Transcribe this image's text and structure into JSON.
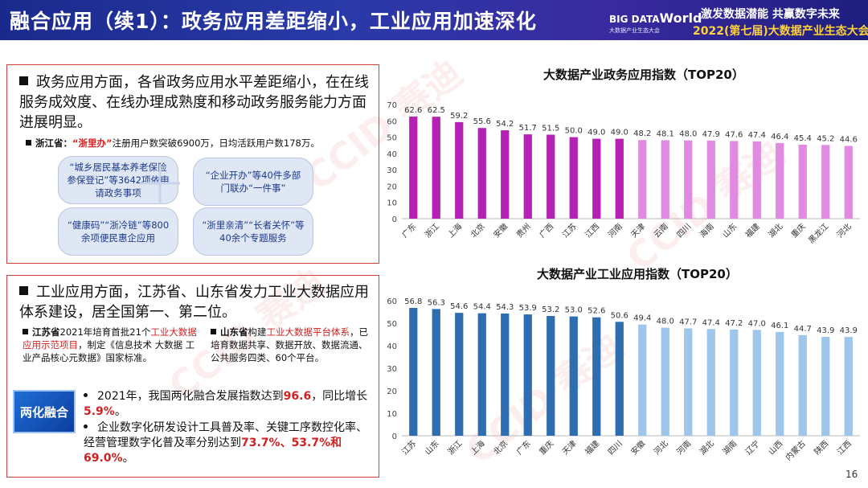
{
  "header": {
    "title": "融合应用（续1）：政务应用差距缩小，工业应用加速深化",
    "logo_line1_a": "BIG DATA",
    "logo_line1_b": "World",
    "logo_line2": "大数据产业生态大会",
    "slogan": "激发数据潜能  共赢数字未来",
    "conference": "2022(第七届)大数据产业生态大会"
  },
  "gov_section": {
    "main_text": "政务应用方面，各省政务应用水平差距缩小，在在线服务成效度、在线办理成熟度和移动政务服务能力方面进展明显。",
    "zj_label": "浙江省：",
    "zj_app": "“浙里办”",
    "zj_text": "注册用户数突破6900万，日均活跃用户数178万。",
    "pills": [
      "“城乡居民基本养老保险参保登记”等3642项依申请政务事项",
      "“企业开办”等40件多部门联办“一件事”",
      "“健康码”“浙冷链”等800余项便民惠企应用",
      "“浙里亲清”“长者关怀”等40余个专题服务"
    ]
  },
  "ind_section": {
    "main_text": "工业应用方面，江苏省、山东省发力工业大数据应用体系建设，居全国第一、第二位。",
    "js_label": "江苏省",
    "js_text_a": "2021年培育首批21个",
    "js_red": "工业大数据应用示范项目",
    "js_text_b": "，制定《信息技术 大数据 工业产品核心元数据》国家标准。",
    "sd_label": "山东省",
    "sd_text_a": "构建",
    "sd_red": "工业大数据平台体系",
    "sd_text_b": "，已培育数据共享、数据开放、数据流通、公共服务四类、60个平台。",
    "badge": "两化融合",
    "b1_a": "2021年，我国两化融合发展指数达到",
    "b1_red1": "96.6",
    "b1_b": "，同比增长",
    "b1_red2": "5.9%",
    "b1_c": "。",
    "b2_a": "企业数字化研发设计工具普及率、关键工序数控化率、经营管理数字化普及率分别达到",
    "b2_red": "73.7%、53.7%和69.0%",
    "b2_c": "。"
  },
  "page_number": "16",
  "watermark": "CCID 赛迪",
  "chart_data": [
    {
      "type": "bar",
      "title": "大数据产业政务应用指数（TOP20）",
      "categories": [
        "广东",
        "浙江",
        "上海",
        "北京",
        "安徽",
        "贵州",
        "广西",
        "江苏",
        "江西",
        "河南",
        "天津",
        "云南",
        "四川",
        "海南",
        "山东",
        "福建",
        "湖北",
        "重庆",
        "黑龙江",
        "河北"
      ],
      "values": [
        62.6,
        62.5,
        59.2,
        55.6,
        54.2,
        51.7,
        51.5,
        50.0,
        49.0,
        49.0,
        48.2,
        48.1,
        48.0,
        47.9,
        47.6,
        47.4,
        46.4,
        45.4,
        45.2,
        44.6
      ],
      "value_labels": [
        "62.6",
        "62.5",
        "59.2",
        "55.6",
        "54.2",
        "51.7",
        "51.5",
        "50.0",
        "49.0",
        "49.0",
        "48.2",
        "48.1",
        "48.0",
        "47.9",
        "47.6",
        "47.4",
        "46.4",
        "45.4",
        "45.2",
        "44.6"
      ],
      "yticks": [
        "0",
        "10",
        "20",
        "30",
        "40",
        "50",
        "60",
        "70"
      ],
      "ylim": [
        0,
        70
      ],
      "colors": {
        "dark": "#b520b5",
        "light": "#e08ae0"
      },
      "highlight_count": 10
    },
    {
      "type": "bar",
      "title": "大数据产业工业应用指数（TOP20）",
      "categories": [
        "江苏",
        "山东",
        "浙江",
        "上海",
        "北京",
        "广东",
        "重庆",
        "天津",
        "福建",
        "四川",
        "安徽",
        "河北",
        "河南",
        "湖北",
        "湖南",
        "辽宁",
        "山西",
        "内蒙古",
        "陕西",
        "江西"
      ],
      "values": [
        56.8,
        56.3,
        54.6,
        54.4,
        54.3,
        53.9,
        53.2,
        53.0,
        52.6,
        50.6,
        49.4,
        48.0,
        47.7,
        47.4,
        47.2,
        47.0,
        46.1,
        44.7,
        43.9,
        43.9
      ],
      "value_labels": [
        "56.8",
        "56.3",
        "54.6",
        "54.4",
        "54.3",
        "53.9",
        "53.2",
        "53.0",
        "52.6",
        "50.6",
        "49.4",
        "48.0",
        "47.7",
        "47.4",
        "47.2",
        "47.0",
        "46.1",
        "44.7",
        "43.9",
        "43.9"
      ],
      "yticks": [
        "0",
        "10",
        "20",
        "30",
        "40",
        "50",
        "60"
      ],
      "ylim": [
        0,
        60
      ],
      "colors": {
        "dark": "#2e6eb0",
        "light": "#9ec6ea"
      },
      "highlight_count": 10
    }
  ]
}
